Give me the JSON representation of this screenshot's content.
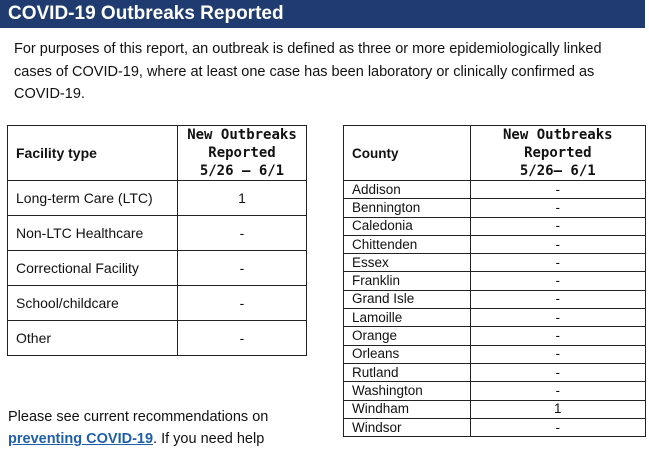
{
  "header": {
    "title": "COVID-19 Outbreaks Reported"
  },
  "intro": "For purposes of this report, an outbreak is defined as three or more epidemiologically linked cases of COVID-19, where at least one case has been laboratory or clinically confirmed as COVID-19.",
  "facility_table": {
    "headers": [
      "Facility type",
      [
        "New Outbreaks",
        "Reported",
        "5/26 – 6/1"
      ]
    ],
    "rows": [
      [
        "Long-term Care (LTC)",
        1
      ],
      [
        "Non-LTC Healthcare",
        "-"
      ],
      [
        "Correctional Facility",
        "-"
      ],
      [
        "School/childcare",
        "-"
      ],
      [
        "Other",
        "-"
      ]
    ]
  },
  "county_table": {
    "headers": [
      "County",
      [
        "New Outbreaks",
        "Reported",
        "5/26– 6/1"
      ]
    ],
    "rows": [
      [
        "Addison",
        "-"
      ],
      [
        "Bennington",
        "-"
      ],
      [
        "Caledonia",
        "-"
      ],
      [
        "Chittenden",
        "-"
      ],
      [
        "Essex",
        "-"
      ],
      [
        "Franklin",
        "-"
      ],
      [
        "Grand Isle",
        "-"
      ],
      [
        "Lamoille",
        "-"
      ],
      [
        "Orange",
        "-"
      ],
      [
        "Orleans",
        "-"
      ],
      [
        "Rutland",
        "-"
      ],
      [
        "Washington",
        "-"
      ],
      [
        "Windham",
        1
      ],
      [
        "Windsor",
        "-"
      ]
    ]
  },
  "footer": {
    "text_before": "Please see current recommendations on",
    "link": "preventing COVID-19",
    "text_after": ". If you need help"
  }
}
